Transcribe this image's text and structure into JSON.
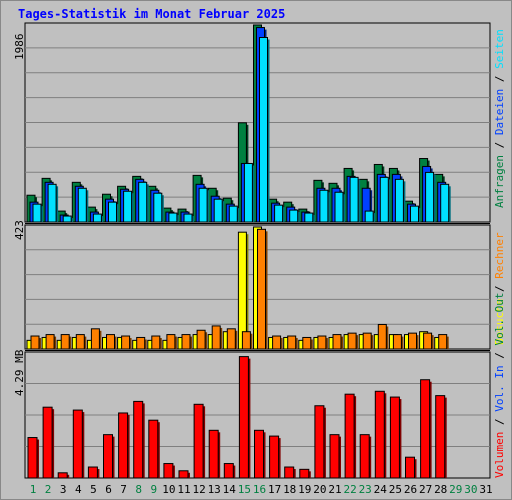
{
  "chart_data": [
    {
      "type": "bar",
      "title": "Tages-Statistik im Monat Februar 2025",
      "ymax_label": "1986",
      "ylim": [
        0,
        1986
      ],
      "legend": [
        {
          "name": "Anfragen",
          "color": "#008040"
        },
        {
          "name": "Dateien",
          "color": "#0040ff"
        },
        {
          "name": "Seiten",
          "color": "#00e0ff"
        }
      ],
      "categories": [
        "1",
        "2",
        "3",
        "4",
        "5",
        "6",
        "7",
        "8",
        "9",
        "10",
        "11",
        "12",
        "13",
        "14",
        "15",
        "16",
        "17",
        "18",
        "19",
        "20",
        "21",
        "22",
        "23",
        "24",
        "25",
        "26",
        "27",
        "28"
      ],
      "series": [
        {
          "name": "Anfragen",
          "values": [
            270,
            440,
            110,
            400,
            150,
            280,
            360,
            460,
            360,
            140,
            130,
            470,
            340,
            240,
            1000,
            1986,
            230,
            200,
            130,
            420,
            390,
            540,
            430,
            580,
            540,
            210,
            640,
            480
          ]
        },
        {
          "name": "Dateien",
          "values": [
            200,
            400,
            70,
            360,
            100,
            230,
            330,
            430,
            320,
            100,
            100,
            380,
            260,
            180,
            590,
            1960,
            190,
            150,
            100,
            340,
            340,
            460,
            340,
            480,
            480,
            180,
            560,
            400
          ]
        },
        {
          "name": "Seiten",
          "values": [
            180,
            380,
            60,
            340,
            80,
            200,
            310,
            400,
            290,
            90,
            80,
            340,
            230,
            160,
            590,
            1860,
            170,
            120,
            90,
            320,
            300,
            450,
            110,
            450,
            430,
            160,
            500,
            380
          ]
        }
      ]
    },
    {
      "type": "bar",
      "ymax_label": "423",
      "ylim": [
        0,
        423
      ],
      "legend": [
        {
          "name": "Besuche",
          "color": "#ffff00"
        },
        {
          "name": "Rechner",
          "color": "#ff8000"
        }
      ],
      "categories": [
        "1",
        "2",
        "3",
        "4",
        "5",
        "6",
        "7",
        "8",
        "9",
        "10",
        "11",
        "12",
        "13",
        "14",
        "15",
        "16",
        "17",
        "18",
        "19",
        "20",
        "21",
        "22",
        "23",
        "24",
        "25",
        "26",
        "27",
        "28"
      ],
      "series": [
        {
          "name": "Besuche",
          "values": [
            30,
            40,
            30,
            40,
            30,
            40,
            40,
            30,
            30,
            30,
            40,
            50,
            50,
            60,
            405,
            423,
            40,
            40,
            30,
            40,
            40,
            50,
            50,
            50,
            50,
            50,
            60,
            40
          ]
        },
        {
          "name": "Rechner",
          "values": [
            45,
            50,
            50,
            50,
            70,
            50,
            45,
            40,
            45,
            50,
            50,
            65,
            80,
            70,
            60,
            415,
            45,
            45,
            40,
            45,
            50,
            55,
            55,
            85,
            50,
            55,
            55,
            50
          ]
        }
      ]
    },
    {
      "type": "bar",
      "ymax_label": "4.29 MB",
      "ylim": [
        0,
        4.29
      ],
      "legend": [
        {
          "name": "Volumen",
          "color": "#ff0000"
        },
        {
          "name": "Vol. In",
          "color": "#0040ff"
        },
        {
          "name": "Vol. Out",
          "color": "#008040"
        }
      ],
      "categories": [
        "1",
        "2",
        "3",
        "4",
        "5",
        "6",
        "7",
        "8",
        "9",
        "10",
        "11",
        "12",
        "13",
        "14",
        "15",
        "16",
        "17",
        "18",
        "19",
        "20",
        "21",
        "22",
        "23",
        "24",
        "25",
        "26",
        "27",
        "28"
      ],
      "series": [
        {
          "name": "Volumen",
          "values": [
            1.4,
            2.45,
            0.18,
            2.35,
            0.38,
            1.5,
            2.25,
            2.65,
            2.0,
            0.5,
            0.25,
            2.55,
            1.65,
            0.5,
            4.2,
            1.65,
            1.45,
            0.38,
            0.3,
            2.5,
            1.5,
            2.9,
            1.5,
            3.0,
            2.8,
            0.72,
            3.4,
            2.85
          ]
        }
      ]
    }
  ],
  "xaxis": {
    "days": [
      "1",
      "2",
      "3",
      "4",
      "5",
      "6",
      "7",
      "8",
      "9",
      "10",
      "11",
      "12",
      "13",
      "14",
      "15",
      "16",
      "17",
      "18",
      "19",
      "20",
      "21",
      "22",
      "23",
      "24",
      "25",
      "26",
      "27",
      "28",
      "29",
      "30",
      "31"
    ],
    "weekend_days": [
      "1",
      "2",
      "8",
      "9",
      "15",
      "16",
      "22",
      "23",
      "29",
      "30"
    ],
    "weekday_color": "#000000",
    "weekend_color": "#008040"
  },
  "separator_color": "#000000",
  "title_color": "#0000ff"
}
